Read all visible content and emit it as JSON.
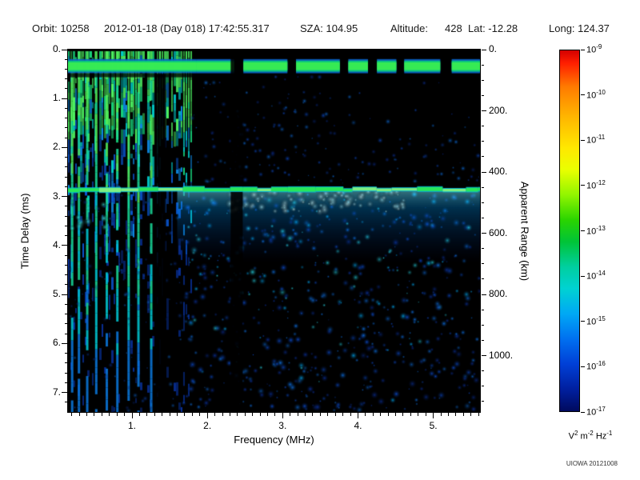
{
  "header": {
    "items": [
      "Orbit: 10258",
      "2012-01-18 (Day 018) 17:42:55.317",
      "SZA: 104.95",
      "Altitude:",
      "428",
      "Lat: -12.28",
      "Long: 124.37"
    ]
  },
  "chart_data": {
    "type": "heatmap",
    "x_axis": {
      "label": "Frequency (MHz)",
      "min": 0.15,
      "max": 5.62,
      "major_ticks": [
        1,
        2,
        3,
        4,
        5
      ],
      "minor_step": 0.1,
      "tick_suffix": "."
    },
    "y_axis": {
      "label": "Time Delay (ms)",
      "min": 0,
      "max": 7.4,
      "major_ticks": [
        0,
        1,
        2,
        3,
        4,
        5,
        6,
        7
      ],
      "minor_step": 0.2,
      "tick_suffix": "."
    },
    "y2_axis": {
      "label": "Apparent Range (km)",
      "min": 0,
      "max": 1184,
      "major_ticks": [
        0,
        200,
        400,
        600,
        800,
        1000
      ],
      "minor_step": 50,
      "tick_suffix": "."
    },
    "colorbar": {
      "scale": "log",
      "exponents": [
        -9,
        -10,
        -11,
        -12,
        -13,
        -14,
        -15,
        -16,
        -17
      ],
      "unit_tokens": [
        [
          "V",
          "2"
        ],
        [
          "m",
          "-2"
        ],
        [
          "Hz",
          "-1"
        ]
      ],
      "stops": [
        [
          "#d40000",
          0
        ],
        [
          "#ff1e00",
          0.035
        ],
        [
          "#ff7a00",
          0.1
        ],
        [
          "#ffb300",
          0.18
        ],
        [
          "#ffe800",
          0.27
        ],
        [
          "#eaff00",
          0.33
        ],
        [
          "#92f500",
          0.4
        ],
        [
          "#2ad400",
          0.47
        ],
        [
          "#00c437",
          0.53
        ],
        [
          "#00cfa0",
          0.6
        ],
        [
          "#00d2d2",
          0.66
        ],
        [
          "#00a8f5",
          0.73
        ],
        [
          "#0070f0",
          0.8
        ],
        [
          "#003fd6",
          0.87
        ],
        [
          "#001f9e",
          0.94
        ],
        [
          "#000a5e",
          1
        ]
      ]
    },
    "features": {
      "seed": 20121008,
      "background": "#000000",
      "transmit_band_ms": [
        0.21,
        0.45
      ],
      "transmit_band_solid_to_mhz": 1.85,
      "surface_echo_ms": 2.86,
      "surface_glow_to_ms": 4.35,
      "ionosphere_region_mhz": [
        0.15,
        1.78
      ],
      "bright_stripes_mhz": [
        0.2,
        0.29,
        0.4,
        0.52,
        0.66,
        0.8,
        0.95,
        1.08,
        1.25
      ],
      "black_columns_mhz": [
        [
          1.33,
          1.45
        ],
        [
          2.31,
          2.47
        ]
      ],
      "speckle_below_count": 680,
      "speckle_above_count": 250,
      "speckle_colors": [
        "#0a2f9a",
        "#0b49c8",
        "#0d6fe2",
        "#00a6f0",
        "#27d8e8"
      ],
      "surface_line_colors": [
        "#2ced4e",
        "#8cf779",
        "#00b8e0"
      ],
      "band_colors": [
        "#0a63c8",
        "#0ccf7a",
        "#3bee4f"
      ]
    },
    "credit": "UIOWA 20121008"
  }
}
